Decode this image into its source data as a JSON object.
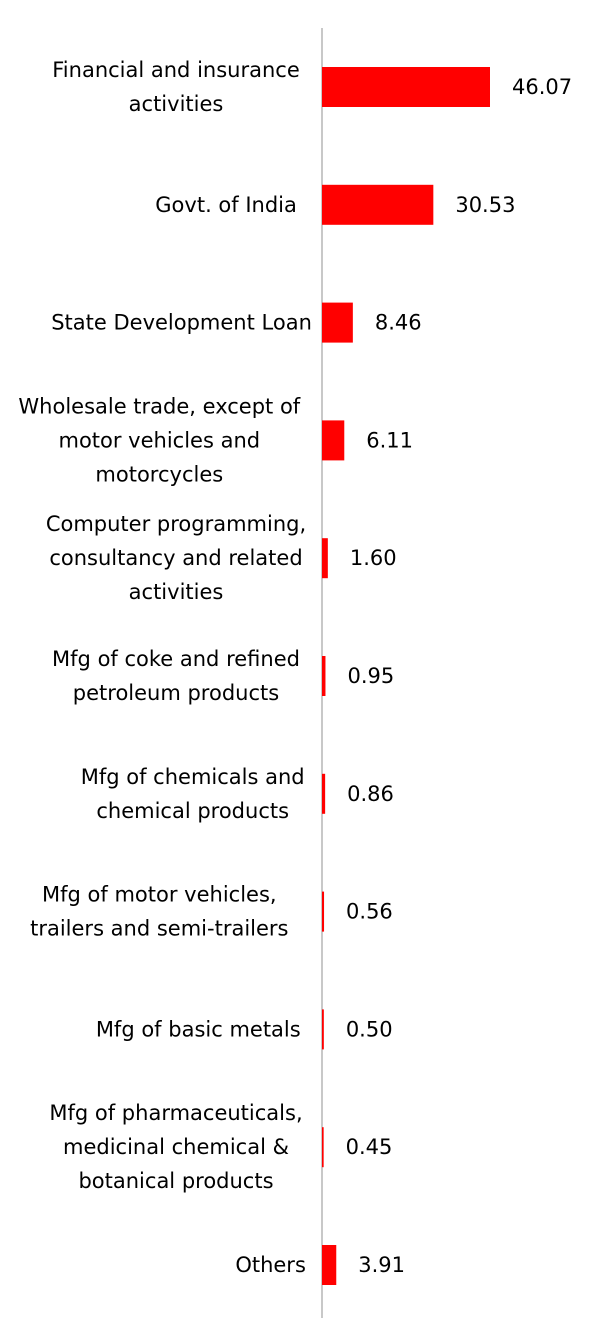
{
  "chart_data": {
    "type": "bar",
    "orientation": "horizontal",
    "categories": [
      "Financial and insurance activities",
      "Govt. of India",
      "State Development Loan",
      "Wholesale trade, except of motor vehicles and motorcycles",
      "Computer programming, consultancy and related activities",
      "Mfg of coke and refined petroleum products",
      "Mfg of chemicals and chemical products",
      "Mfg of motor vehicles, trailers and semi-trailers",
      "Mfg of basic metals",
      "Mfg of pharmaceuticals, medicinal chemical & botanical products",
      "Others"
    ],
    "category_label_lines": [
      [
        "Financial and insurance",
        "activities"
      ],
      [
        "Govt. of India"
      ],
      [
        "State Development Loan"
      ],
      [
        "Wholesale trade, except of",
        "motor vehicles and",
        "motorcycles"
      ],
      [
        "Computer programming,",
        "consultancy and related",
        "activities"
      ],
      [
        "Mfg of coke and refined",
        "petroleum products"
      ],
      [
        "Mfg of chemicals and",
        "chemical products"
      ],
      [
        "Mfg of motor vehicles,",
        "trailers and semi-trailers"
      ],
      [
        "Mfg of basic metals"
      ],
      [
        "Mfg of pharmaceuticals,",
        "medicinal chemical &",
        "botanical products"
      ],
      [
        "Others"
      ]
    ],
    "values": [
      46.07,
      30.53,
      8.46,
      6.11,
      1.6,
      0.95,
      0.86,
      0.56,
      0.5,
      0.45,
      3.91
    ],
    "value_labels": [
      "46.07",
      "30.53",
      "8.46",
      "6.11",
      "1.60",
      "0.95",
      "0.86",
      "0.56",
      "0.50",
      "0.45",
      "3.91"
    ],
    "xlim": [
      0,
      50
    ],
    "title": "",
    "xlabel": "",
    "ylabel": "",
    "grid": false,
    "legend": "none",
    "colors": {
      "bar": "#ff0000",
      "axis": "#c8c8c8",
      "text": "#000000"
    }
  }
}
